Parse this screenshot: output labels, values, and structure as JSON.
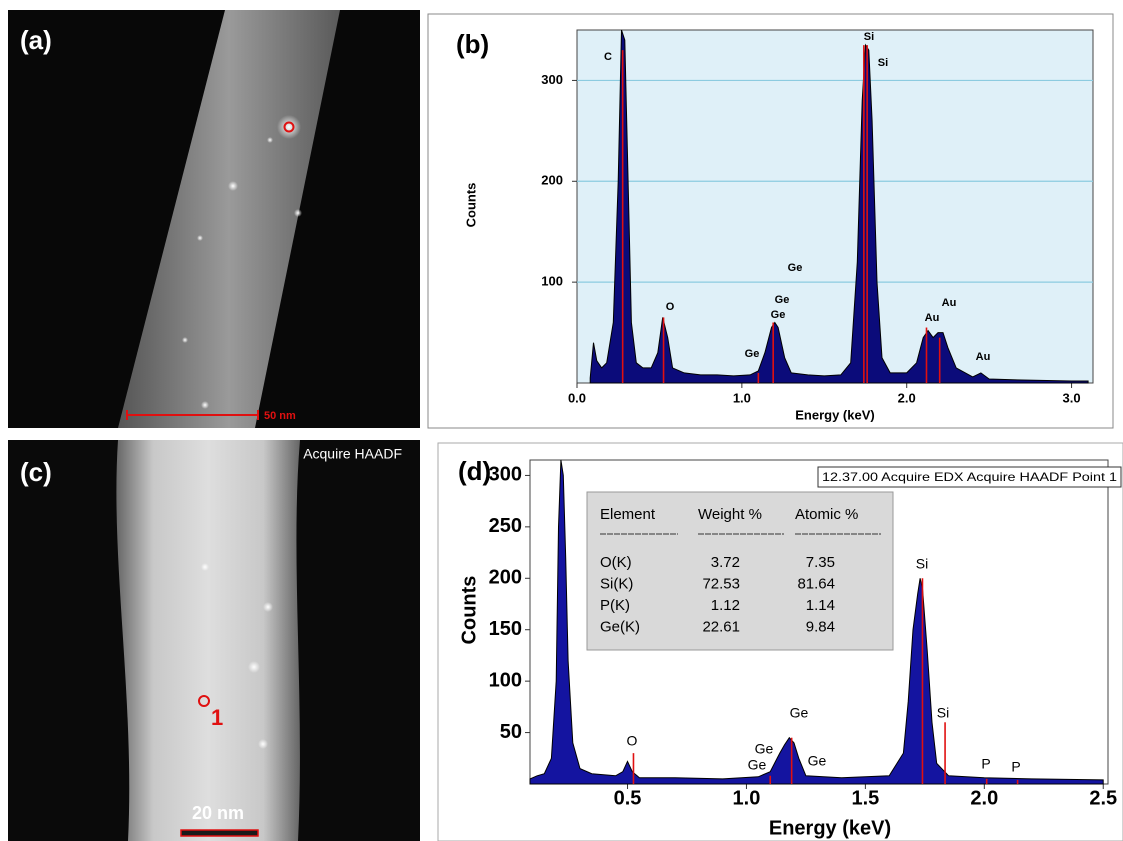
{
  "images": [
    {
      "label": "(a)",
      "scale_bar": "50 nm"
    },
    {
      "label": "(c)",
      "caption": "Acquire HAADF",
      "marker": "1",
      "scale_bar": "20 nm"
    }
  ],
  "chart_data": [
    {
      "type": "area",
      "panel_label": "(b)",
      "x_label": "Energy (keV)",
      "y_label": "Counts",
      "color": "#0b0b7a",
      "marker_color": "#e01010",
      "grid": true,
      "xlim": [
        0,
        3.13
      ],
      "ylim": [
        0,
        350
      ],
      "xticks": [
        {
          "value": 0,
          "label": "0.0"
        },
        {
          "value": 1,
          "label": "1.0"
        },
        {
          "value": 2,
          "label": "2.0"
        },
        {
          "value": 3,
          "label": "3.0"
        }
      ],
      "yticks": [
        100,
        200,
        300
      ],
      "x": [
        0.08,
        0.1,
        0.12,
        0.15,
        0.18,
        0.22,
        0.25,
        0.27,
        0.29,
        0.31,
        0.33,
        0.36,
        0.4,
        0.45,
        0.49,
        0.52,
        0.55,
        0.58,
        0.65,
        0.75,
        0.85,
        0.95,
        1.05,
        1.1,
        1.14,
        1.18,
        1.2,
        1.22,
        1.26,
        1.3,
        1.4,
        1.5,
        1.6,
        1.66,
        1.7,
        1.73,
        1.75,
        1.77,
        1.79,
        1.82,
        1.85,
        1.9,
        2.0,
        2.06,
        2.1,
        2.13,
        2.16,
        2.19,
        2.22,
        2.25,
        2.3,
        2.4,
        2.45,
        2.5,
        2.7,
        3.0,
        3.1
      ],
      "values": [
        5,
        40,
        22,
        15,
        20,
        60,
        200,
        350,
        340,
        200,
        60,
        20,
        15,
        15,
        30,
        65,
        45,
        15,
        10,
        8,
        8,
        7,
        8,
        12,
        30,
        55,
        60,
        55,
        25,
        10,
        8,
        7,
        8,
        20,
        120,
        280,
        335,
        330,
        260,
        100,
        25,
        10,
        10,
        20,
        45,
        52,
        45,
        50,
        50,
        35,
        15,
        6,
        10,
        4,
        3,
        2,
        2
      ],
      "markers": {
        "x": [
          0.277,
          0.525,
          1.1,
          1.19,
          1.74,
          1.76,
          2.12,
          2.2
        ],
        "values": [
          330,
          65,
          10,
          60,
          335,
          335,
          55,
          45
        ]
      },
      "annotations": [
        "C",
        "O",
        "Ge",
        "Ge",
        "Ge",
        "Ge",
        "Si",
        "Si",
        "Au",
        "Au",
        "Au"
      ]
    },
    {
      "type": "area",
      "panel_label": "(d)",
      "x_label": "Energy (keV)",
      "y_label": "Counts",
      "color": "#1414a0",
      "marker_color": "#e01010",
      "grid": false,
      "title": "12.37.00 Acquire EDX Acquire HAADF Point 1",
      "xlim": [
        0.09,
        2.52
      ],
      "ylim": [
        0,
        315
      ],
      "xticks": [
        0.5,
        {
          "value": 1,
          "label": "1.0"
        },
        1.5,
        {
          "value": 2,
          "label": "2.0"
        },
        2.5
      ],
      "yticks": [
        50,
        100,
        150,
        200,
        250,
        300
      ],
      "x": [
        0.09,
        0.12,
        0.15,
        0.18,
        0.2,
        0.21,
        0.22,
        0.23,
        0.24,
        0.25,
        0.27,
        0.3,
        0.35,
        0.45,
        0.48,
        0.5,
        0.52,
        0.55,
        0.7,
        0.9,
        1.05,
        1.1,
        1.14,
        1.16,
        1.18,
        1.2,
        1.22,
        1.25,
        1.4,
        1.6,
        1.66,
        1.68,
        1.7,
        1.72,
        1.73,
        1.74,
        1.76,
        1.78,
        1.8,
        1.85,
        2.0,
        2.2,
        2.5
      ],
      "values": [
        5,
        8,
        10,
        25,
        100,
        250,
        315,
        300,
        220,
        120,
        40,
        15,
        10,
        8,
        12,
        22,
        12,
        6,
        6,
        5,
        7,
        12,
        30,
        38,
        45,
        40,
        25,
        8,
        6,
        8,
        30,
        80,
        150,
        185,
        200,
        190,
        130,
        60,
        20,
        8,
        6,
        5,
        4
      ],
      "markers": {
        "x": [
          0.525,
          1.1,
          1.19,
          1.74,
          1.835,
          2.01,
          2.14
        ],
        "values": [
          30,
          8,
          45,
          200,
          60,
          5,
          4
        ]
      },
      "annotations": [
        "O",
        "Ge",
        "Ge",
        "Ge",
        "Ge",
        "Si",
        "Si",
        "P",
        "P"
      ],
      "table": {
        "header": [
          "Element",
          "Weight %",
          "Atomic %"
        ],
        "rows": [
          [
            "O(K)",
            "3.72",
            "7.35"
          ],
          [
            "Si(K)",
            "72.53",
            "81.64"
          ],
          [
            "P(K)",
            "1.12",
            "1.14"
          ],
          [
            "Ge(K)",
            "22.61",
            "9.84"
          ]
        ]
      }
    }
  ]
}
